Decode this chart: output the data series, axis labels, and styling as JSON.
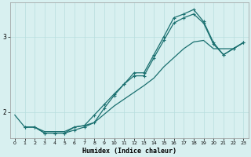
{
  "xlabel": "Humidex (Indice chaleur)",
  "bg_color": "#d8f0f0",
  "line_color": "#1a7070",
  "xlim": [
    -0.5,
    23.5
  ],
  "ylim": [
    1.65,
    3.45
  ],
  "yticks": [
    2,
    3
  ],
  "xticks": [
    0,
    1,
    2,
    3,
    4,
    5,
    6,
    7,
    8,
    9,
    10,
    11,
    12,
    13,
    14,
    15,
    16,
    17,
    18,
    19,
    20,
    21,
    22,
    23
  ],
  "line1_x": [
    0,
    1,
    2,
    3,
    4,
    5,
    6,
    7,
    8,
    9,
    10,
    11,
    12,
    13,
    14,
    15,
    16,
    17,
    18,
    19,
    20,
    21,
    22,
    23
  ],
  "line1_y": [
    1.96,
    1.8,
    1.8,
    1.74,
    1.74,
    1.74,
    1.8,
    1.82,
    1.86,
    1.97,
    2.08,
    2.17,
    2.26,
    2.35,
    2.45,
    2.6,
    2.72,
    2.84,
    2.93,
    2.95,
    2.84,
    2.84,
    2.84,
    2.92
  ],
  "line2_x": [
    1,
    2,
    3,
    4,
    5,
    6,
    7,
    8,
    9,
    10,
    11,
    12,
    13,
    14,
    15,
    16,
    17,
    18,
    19,
    20,
    21,
    22,
    23
  ],
  "line2_y": [
    1.8,
    1.8,
    1.72,
    1.72,
    1.72,
    1.76,
    1.8,
    1.86,
    2.05,
    2.22,
    2.37,
    2.48,
    2.48,
    2.72,
    2.95,
    3.18,
    3.25,
    3.3,
    3.18,
    2.9,
    2.76,
    2.84,
    2.92
  ],
  "line3_x": [
    1,
    2,
    3,
    4,
    5,
    6,
    7,
    8,
    9,
    10,
    11,
    12,
    13,
    14,
    15,
    16,
    17,
    18,
    19,
    20,
    21,
    22,
    23
  ],
  "line3_y": [
    1.8,
    1.8,
    1.72,
    1.72,
    1.72,
    1.8,
    1.82,
    1.96,
    2.1,
    2.24,
    2.37,
    2.52,
    2.52,
    2.76,
    3.0,
    3.25,
    3.3,
    3.36,
    3.2,
    2.92,
    2.76,
    2.84,
    2.92
  ]
}
